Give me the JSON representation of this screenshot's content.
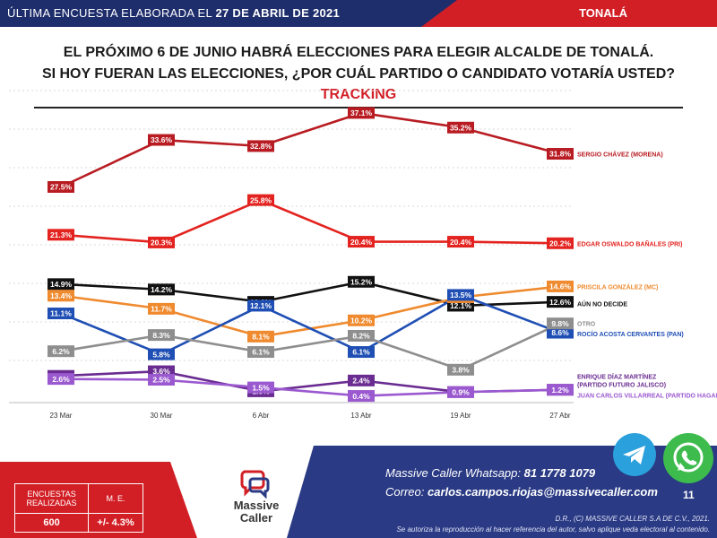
{
  "header": {
    "prefix": "ÚLTIMA ENCUESTA ELABORADA EL",
    "date": "27 DE ABRIL DE 2021",
    "location": "TONALÁ"
  },
  "titles": {
    "line1": "EL PRÓXIMO 6 DE JUNIO HABRÁ ELECCIONES PARA ELEGIR ALCALDE DE TONALÁ.",
    "line2": "SI HOY FUERAN LAS ELECCIONES, ¿POR CUÁL PARTIDO O CANDIDATO VOTARÍA USTED?",
    "subtitle": "TRACKING"
  },
  "chart_data": {
    "type": "line",
    "categories": [
      "23 Mar",
      "30 Mar",
      "6 Abr",
      "13 Abr",
      "19 Abr",
      "27 Abr"
    ],
    "ylim": [
      0,
      40
    ],
    "grid": true,
    "legend": "right",
    "series": [
      {
        "name": "SERGIO CHÁVEZ (MORENA)",
        "color": "#b81c22",
        "values": [
          27.5,
          33.6,
          32.8,
          37.1,
          35.2,
          31.8
        ],
        "labels": [
          "27.5%",
          "33.6%",
          "32.8%",
          "37.1%",
          "35.2%",
          "31.8%"
        ]
      },
      {
        "name": "EDGAR OSWALDO BAÑALES (PRI)",
        "color": "#e3231f",
        "values": [
          21.3,
          20.3,
          25.8,
          20.4,
          20.4,
          20.2
        ],
        "labels": [
          "21.3%",
          "20.3%",
          "25.8%",
          "20.4%",
          "20.4%",
          "20.2%"
        ]
      },
      {
        "name": "AÚN NO DECIDE",
        "color": "#111111",
        "values": [
          14.9,
          14.2,
          12.6,
          15.2,
          12.1,
          12.6
        ],
        "labels": [
          "14.9%",
          "14.2%",
          "12.6%",
          "15.2%",
          "12.1%",
          "12.6%"
        ]
      },
      {
        "name": "PRISCILA GONZÁLEZ (MC)",
        "color": "#ef8a2e",
        "values": [
          13.4,
          11.7,
          8.1,
          10.2,
          13.2,
          14.6
        ],
        "labels": [
          "13.4%",
          "11.7%",
          "8.1%",
          "10.2%",
          "13.2%",
          "14.6%"
        ]
      },
      {
        "name": "ROCÍO  ACOSTA CERVANTES (PAN)",
        "color": "#1f4fb4",
        "values": [
          11.1,
          5.8,
          12.1,
          6.1,
          13.5,
          8.6
        ],
        "labels": [
          "11.1%",
          "5.8%",
          "12.1%",
          "6.1%",
          "13.5%",
          "8.6%"
        ]
      },
      {
        "name": "OTRO",
        "color": "#8e8e8e",
        "values": [
          6.2,
          8.3,
          6.1,
          8.2,
          3.8,
          9.8
        ],
        "labels": [
          "6.2%",
          "8.3%",
          "6.1%",
          "8.2%",
          "3.8%",
          "9.8%"
        ]
      },
      {
        "name": "ENRIQUE DÍAZ MARTÍNEZ",
        "name2": "(PARTIDO FUTURO JALISCO)",
        "color": "#6a2c91",
        "values": [
          3.0,
          3.6,
          1.0,
          2.4,
          0.9,
          1.2
        ],
        "labels": [
          "3.0%",
          "3.6%",
          "1.0%",
          "2.4%",
          "0.9%",
          "1.2%"
        ]
      },
      {
        "name": "JUAN CARLOS VILLARREAL (PARTIDO HAGAMOS)",
        "color": "#9b59d0",
        "values": [
          2.6,
          2.5,
          1.5,
          0.4,
          0.9,
          1.2
        ],
        "labels": [
          "2.6%",
          "2.5%",
          "1.5%",
          "0.4%",
          "0.9%",
          "1.2%"
        ]
      }
    ]
  },
  "footer": {
    "stats": {
      "h1a": "ENCUESTAS",
      "h1b": "REALIZADAS",
      "h2": "M. E.",
      "v1": "600",
      "v2": "+/- 4.3%"
    },
    "brand1": "Massive",
    "brand2": "Caller",
    "whatsapp_label": "Massive Caller Whatsapp:",
    "whatsapp_number": "81 1778 1079",
    "email_label": "Correo:",
    "email": "carlos.campos.riojas@massivecaller.com",
    "page": "11",
    "credit1": "D.R., (C) MASSIVE CALLER S.A DE C.V., 2021.",
    "credit2": "Se autoriza la reproducción al hacer referencia del autor, salvo aplique veda electoral al contenido.",
    "icons": [
      "telegram-icon",
      "whatsapp-icon"
    ]
  }
}
